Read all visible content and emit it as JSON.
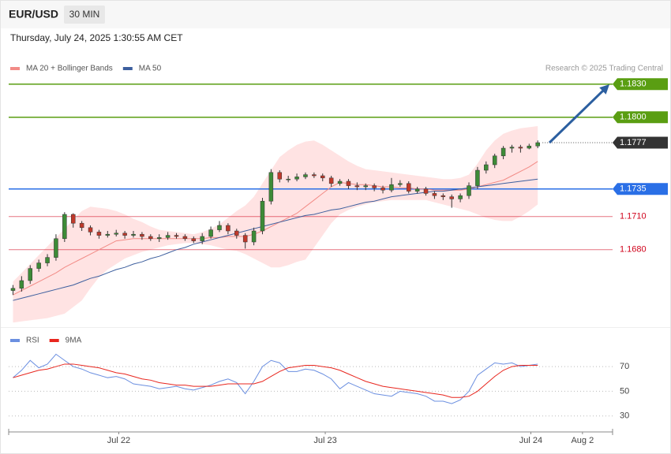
{
  "header": {
    "symbol": "EUR/USD",
    "timeframe": "30 MIN",
    "datetime": "Thursday, July 24, 2025 1:30:55 AM CET",
    "credit": "Research © 2025 Trading Central"
  },
  "chart_data": [
    {
      "type": "candlestick",
      "up_color": "#3d8b37",
      "down_color": "#c0392b",
      "candles": {
        "open": [
          1.1643,
          1.1645,
          1.1652,
          1.1663,
          1.1668,
          1.1673,
          1.169,
          1.1712,
          1.1704,
          1.17,
          1.1696,
          1.1693,
          1.1694,
          1.1695,
          1.1693,
          1.1694,
          1.1692,
          1.169,
          1.1691,
          1.1693,
          1.1692,
          1.169,
          1.1688,
          1.1692,
          1.1698,
          1.1702,
          1.1697,
          1.1693,
          1.1687,
          1.1697,
          1.1724,
          1.175,
          1.1744,
          1.1744,
          1.1746,
          1.1748,
          1.1747,
          1.1745,
          1.174,
          1.1742,
          1.1738,
          1.1737,
          1.1738,
          1.1736,
          1.1734,
          1.1739,
          1.174,
          1.1733,
          1.1735,
          1.1731,
          1.1729,
          1.1728,
          1.1726,
          1.1729,
          1.1738,
          1.1752,
          1.1757,
          1.1765,
          1.1772,
          1.1773,
          1.1772,
          1.1774
        ],
        "high": [
          1.1648,
          1.1656,
          1.1666,
          1.1671,
          1.1676,
          1.1694,
          1.1714,
          1.1713,
          1.1706,
          1.1702,
          1.1698,
          1.1697,
          1.1698,
          1.1697,
          1.1697,
          1.1696,
          1.1694,
          1.1694,
          1.1696,
          1.1695,
          1.1694,
          1.1692,
          1.1695,
          1.1701,
          1.1706,
          1.1704,
          1.1699,
          1.1695,
          1.17,
          1.1727,
          1.1753,
          1.1752,
          1.1747,
          1.1749,
          1.175,
          1.175,
          1.1749,
          1.1747,
          1.1744,
          1.1744,
          1.1741,
          1.174,
          1.174,
          1.1738,
          1.1745,
          1.1743,
          1.1742,
          1.1737,
          1.1737,
          1.1733,
          1.1731,
          1.173,
          1.1731,
          1.1741,
          1.1755,
          1.176,
          1.1767,
          1.1774,
          1.1775,
          1.1775,
          1.1776,
          1.1779
        ],
        "low": [
          1.1639,
          1.1642,
          1.1649,
          1.166,
          1.1665,
          1.167,
          1.1687,
          1.17,
          1.1697,
          1.1693,
          1.169,
          1.1691,
          1.1692,
          1.169,
          1.1691,
          1.1689,
          1.1688,
          1.1687,
          1.1689,
          1.169,
          1.1688,
          1.1686,
          1.1685,
          1.169,
          1.1696,
          1.1694,
          1.169,
          1.1681,
          1.1684,
          1.1694,
          1.1721,
          1.1741,
          1.1741,
          1.1742,
          1.1744,
          1.1745,
          1.1742,
          1.1737,
          1.1738,
          1.1735,
          1.1734,
          1.1734,
          1.1733,
          1.1731,
          1.1732,
          1.1737,
          1.1731,
          1.1731,
          1.1729,
          1.1726,
          1.1725,
          1.1718,
          1.1723,
          1.1726,
          1.1735,
          1.1749,
          1.1754,
          1.1762,
          1.1768,
          1.1768,
          1.1771,
          1.1772
        ],
        "close": [
          1.1645,
          1.1652,
          1.1663,
          1.1668,
          1.1673,
          1.169,
          1.1712,
          1.1704,
          1.17,
          1.1696,
          1.1693,
          1.1694,
          1.1695,
          1.1693,
          1.1694,
          1.1692,
          1.169,
          1.1691,
          1.1693,
          1.1692,
          1.169,
          1.1688,
          1.1692,
          1.1698,
          1.1702,
          1.1697,
          1.1693,
          1.1687,
          1.1697,
          1.1724,
          1.175,
          1.1744,
          1.1744,
          1.1746,
          1.1748,
          1.1747,
          1.1745,
          1.174,
          1.1742,
          1.1738,
          1.1737,
          1.1738,
          1.1736,
          1.1734,
          1.1739,
          1.174,
          1.1733,
          1.1735,
          1.1731,
          1.1729,
          1.1728,
          1.1726,
          1.1729,
          1.1738,
          1.1752,
          1.1757,
          1.1765,
          1.1772,
          1.1773,
          1.1772,
          1.1774,
          1.1777
        ]
      },
      "series": [
        {
          "name": "MA 20 + Bollinger Bands",
          "color": "#f28b86",
          "band_color": "#ffe3e3",
          "values": [
            1.1639,
            1.1643,
            1.1647,
            1.1651,
            1.1655,
            1.1659,
            1.1664,
            1.1668,
            1.1672,
            1.1676,
            1.168,
            1.1684,
            1.1688,
            1.1689,
            1.169,
            1.169,
            1.169,
            1.169,
            1.169,
            1.169,
            1.169,
            1.169,
            1.169,
            1.1691,
            1.1691,
            1.1692,
            1.1692,
            1.1692,
            1.1694,
            1.1697,
            1.1701,
            1.1705,
            1.1709,
            1.1713,
            1.1719,
            1.1725,
            1.1731,
            1.1737,
            1.1741,
            1.174,
            1.1739,
            1.1739,
            1.1738,
            1.1737,
            1.1737,
            1.1736,
            1.1736,
            1.1735,
            1.1735,
            1.1734,
            1.1734,
            1.1734,
            1.1734,
            1.1735,
            1.1737,
            1.1739,
            1.1741,
            1.1743,
            1.1747,
            1.1751,
            1.1755,
            1.176
          ],
          "upper": [
            1.1651,
            1.1659,
            1.1667,
            1.1675,
            1.1683,
            1.1691,
            1.1699,
            1.1707,
            1.1715,
            1.1719,
            1.1718,
            1.1717,
            1.1715,
            1.1712,
            1.1708,
            1.1705,
            1.1701,
            1.1698,
            1.1697,
            1.1696,
            1.1695,
            1.1694,
            1.1696,
            1.1699,
            1.1703,
            1.1709,
            1.1715,
            1.172,
            1.1728,
            1.174,
            1.1752,
            1.1764,
            1.177,
            1.1775,
            1.1778,
            1.1779,
            1.1775,
            1.177,
            1.1765,
            1.176,
            1.1756,
            1.1753,
            1.1752,
            1.1751,
            1.175,
            1.1749,
            1.1748,
            1.1747,
            1.1746,
            1.1745,
            1.1744,
            1.1744,
            1.1745,
            1.1748,
            1.1758,
            1.177,
            1.1779,
            1.1785,
            1.1788,
            1.179,
            1.1791,
            1.1792
          ],
          "lower": [
            1.1614,
            1.1615,
            1.1616,
            1.1617,
            1.1618,
            1.162,
            1.1622,
            1.1628,
            1.1634,
            1.1645,
            1.1655,
            1.1662,
            1.1667,
            1.1672,
            1.1675,
            1.1678,
            1.168,
            1.1682,
            1.1684,
            1.1685,
            1.1686,
            1.1686,
            1.1685,
            1.1684,
            1.1682,
            1.168,
            1.1679,
            1.1676,
            1.1672,
            1.1668,
            1.1664,
            1.1664,
            1.1666,
            1.1669,
            1.1671,
            1.1682,
            1.1693,
            1.1704,
            1.1712,
            1.1716,
            1.1719,
            1.1721,
            1.1723,
            1.1724,
            1.1725,
            1.1725,
            1.1725,
            1.1725,
            1.1725,
            1.1723,
            1.1721,
            1.1719,
            1.1717,
            1.1715,
            1.1712,
            1.1709,
            1.1707,
            1.1706,
            1.1706,
            1.171,
            1.1715,
            1.1721
          ]
        },
        {
          "name": "MA 50",
          "color": "#3d5f9e",
          "values": [
            1.1634,
            1.1636,
            1.1638,
            1.164,
            1.1642,
            1.1644,
            1.1646,
            1.1648,
            1.1651,
            1.1654,
            1.1656,
            1.1659,
            1.1662,
            1.1664,
            1.1667,
            1.1669,
            1.1672,
            1.1674,
            1.1677,
            1.168,
            1.1682,
            1.1685,
            1.1687,
            1.1689,
            1.1691,
            1.1693,
            1.1695,
            1.1697,
            1.1699,
            1.1701,
            1.1703,
            1.1705,
            1.1707,
            1.1709,
            1.1711,
            1.1712,
            1.1714,
            1.1716,
            1.1717,
            1.1719,
            1.1721,
            1.1723,
            1.1724,
            1.1726,
            1.1728,
            1.1729,
            1.173,
            1.1731,
            1.1732,
            1.1733,
            1.1733,
            1.1734,
            1.1735,
            1.1736,
            1.1737,
            1.1738,
            1.1739,
            1.174,
            1.1741,
            1.1742,
            1.1743,
            1.1744
          ]
        }
      ],
      "levels": [
        {
          "value": 1.183,
          "label": "1.1830",
          "color": "#5a9e12",
          "style": "badge"
        },
        {
          "value": 1.18,
          "label": "1.1800",
          "color": "#5a9e12",
          "style": "badge"
        },
        {
          "value": 1.1777,
          "label": "1.1777",
          "color": "#333333",
          "style": "current"
        },
        {
          "value": 1.1735,
          "label": "1.1735",
          "color": "#2a6fe6",
          "style": "badge"
        },
        {
          "value": 1.171,
          "label": "1.1710",
          "color": "#d0021b",
          "style": "plain"
        },
        {
          "value": 1.168,
          "label": "1.1680",
          "color": "#d0021b",
          "style": "plain"
        }
      ],
      "xlim": [
        0,
        70.2
      ],
      "ylim": [
        1.1612,
        1.1842
      ]
    },
    {
      "type": "line",
      "series": [
        {
          "name": "RSI",
          "color": "#6b8fe0",
          "values": [
            61,
            67,
            75,
            69,
            72,
            80,
            75,
            70,
            68,
            65,
            63,
            61,
            62,
            60,
            56,
            55,
            54,
            52,
            53,
            54,
            52,
            51,
            53,
            55,
            58,
            60,
            57,
            48,
            58,
            70,
            75,
            73,
            66,
            66,
            68,
            67,
            64,
            60,
            52,
            57,
            54,
            51,
            48,
            47,
            46,
            50,
            49,
            48,
            46,
            42,
            42,
            40,
            43,
            50,
            63,
            68,
            73,
            72,
            73,
            70,
            71,
            72
          ]
        },
        {
          "name": "9MA",
          "color": "#e8261e",
          "values": [
            61,
            63,
            65,
            67,
            68,
            70,
            72,
            72,
            71,
            70,
            69,
            67,
            65,
            64,
            62,
            60,
            59,
            57,
            56,
            55,
            55,
            54,
            54,
            54,
            55,
            56,
            56,
            56,
            56,
            58,
            62,
            66,
            69,
            70,
            71,
            71,
            70,
            69,
            67,
            64,
            61,
            58,
            56,
            54,
            53,
            52,
            51,
            50,
            49,
            48,
            47,
            45,
            45,
            46,
            50,
            56,
            62,
            67,
            70,
            71,
            71,
            71
          ]
        }
      ],
      "xlim": [
        0,
        70.2
      ],
      "xticks": [
        {
          "value": 12.8,
          "label": "Jul 22"
        },
        {
          "value": 36.8,
          "label": "Jul 23"
        },
        {
          "value": 60.7,
          "label": "Jul 24"
        },
        {
          "value": 66.7,
          "label": "Aug 2"
        }
      ],
      "ylim": [
        19,
        86
      ],
      "yticks": [
        70,
        50,
        30
      ],
      "grid": true
    }
  ]
}
